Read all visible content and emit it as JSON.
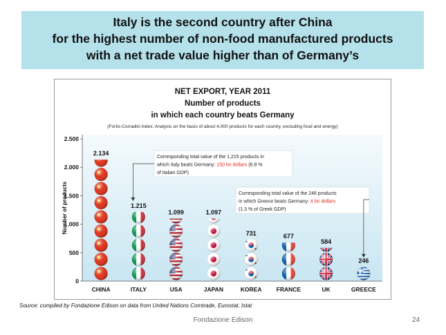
{
  "slide": {
    "banner_lines": [
      "Italy is the second country after China",
      "for the highest number of non-food manufactured products",
      "with a net trade value higher than of Germany’s"
    ],
    "source": "Source: compiled by Fondazione Edison on data from United Nations Comtrade, Eurostat, Istat",
    "footer": "Fondazione Edison",
    "page_number": "24"
  },
  "chart_data": {
    "type": "bar",
    "title_lines": [
      "NET EXPORT, YEAR 2011",
      "Number of products",
      "in which each country beats Germany"
    ],
    "subtitle": "(Fortis-Corradini index. Analysis on the basis of about 4,000 products for each country, excluding food and energy)",
    "ylabel": "Number of products",
    "xlabel": "",
    "ylim": [
      0,
      2500
    ],
    "yticks": [
      0,
      500,
      1000,
      1500,
      2000,
      2500
    ],
    "ytick_labels": [
      "0",
      "500",
      "1.000",
      "1.500",
      "2.000",
      "2.500"
    ],
    "grid": false,
    "categories": [
      "CHINA",
      "ITALY",
      "USA",
      "JAPAN",
      "KOREA",
      "FRANCE",
      "UK",
      "GREECE"
    ],
    "values": [
      2134,
      1215,
      1099,
      1097,
      731,
      677,
      584,
      246
    ],
    "value_labels": [
      "2.134",
      "1.215",
      "1.099",
      "1.097",
      "731",
      "677",
      "584",
      "246"
    ],
    "flags": [
      "china",
      "italy",
      "usa",
      "japan",
      "korea",
      "france",
      "uk",
      "greece"
    ],
    "annotations": [
      {
        "target": "ITALY",
        "lines": [
          [
            {
              "text": "Corresponding total value of the 1,215 products in"
            }
          ],
          [
            {
              "text": "which Italy beats Germany: "
            },
            {
              "text": "150 bn dollars",
              "color": "#e0281b"
            },
            {
              "text": " (6.8 %"
            }
          ],
          [
            {
              "text": "of Italian GDP)"
            }
          ]
        ]
      },
      {
        "target": "GREECE",
        "lines": [
          [
            {
              "text": "Corresponding total value of the 246 products"
            }
          ],
          [
            {
              "text": "in which Greece beats Germany: "
            },
            {
              "text": "4 bn dollars",
              "color": "#e0281b"
            }
          ],
          [
            {
              "text": "(1.3 % of Greek GDP)"
            }
          ]
        ]
      }
    ]
  }
}
